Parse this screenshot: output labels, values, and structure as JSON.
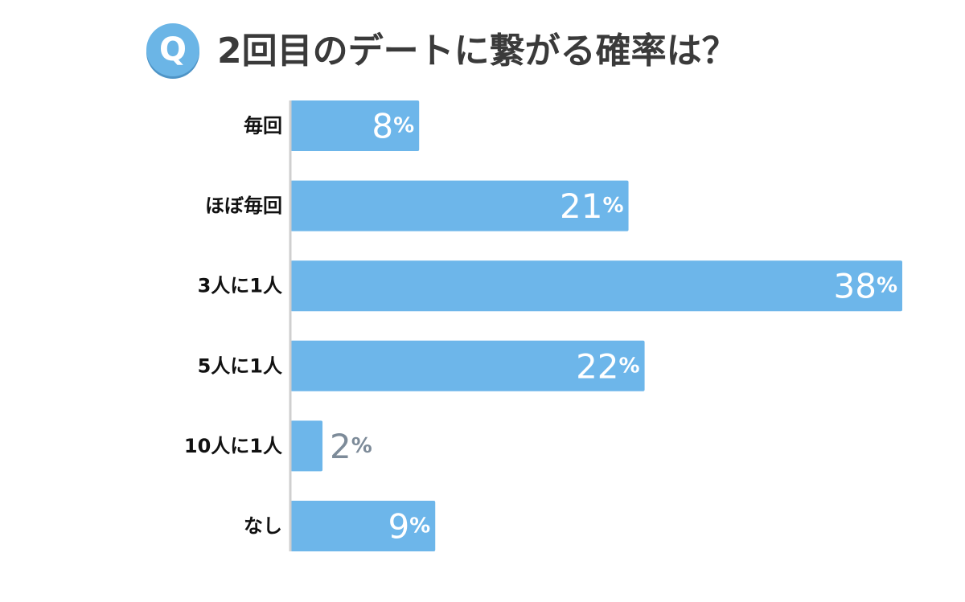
{
  "header": {
    "badge": "Q",
    "title": "2回目のデートに繋がる確率は？"
  },
  "colors": {
    "bar": "#6db6ea",
    "badge": "#6bb5e6",
    "axis": "#cfcfcf",
    "label_inside": "#ffffff",
    "label_outside": "#7d8b99",
    "category_text": "#111111"
  },
  "chart_data": {
    "type": "bar",
    "orientation": "horizontal",
    "title": "2回目のデートに繋がる確率は？",
    "xlabel": "",
    "ylabel": "",
    "unit": "%",
    "xlim": [
      0,
      38
    ],
    "grid": false,
    "categories": [
      "毎回",
      "ほぼ毎回",
      "3人に1人",
      "5人に1人",
      "10人に1人",
      "なし"
    ],
    "values": [
      8,
      21,
      38,
      22,
      2,
      9
    ]
  }
}
